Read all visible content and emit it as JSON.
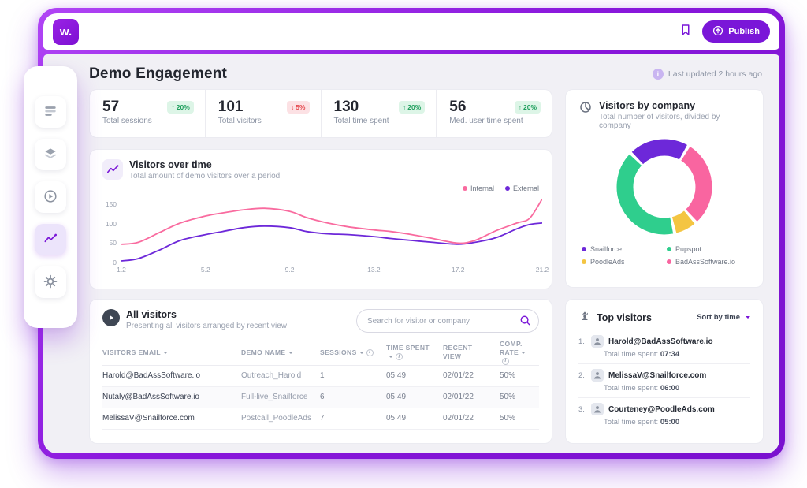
{
  "topbar": {
    "logo_text": "w.",
    "publish": {
      "label": "Publish"
    }
  },
  "page": {
    "title": "Demo Engagement",
    "last_updated": "Last updated 2 hours ago"
  },
  "stats": [
    {
      "value": "57",
      "label": "Total sessions",
      "arrow": "↑",
      "delta": "20%",
      "direction": "up"
    },
    {
      "value": "101",
      "label": "Total visitors",
      "arrow": "↓",
      "delta": "5%",
      "direction": "down"
    },
    {
      "value": "130",
      "label": "Total time spent",
      "arrow": "↑",
      "delta": "20%",
      "direction": "up"
    },
    {
      "value": "56",
      "label": "Med. user time spent",
      "arrow": "↑",
      "delta": "20%",
      "direction": "up"
    }
  ],
  "colors": {
    "primary": "#7A16D8",
    "internal_pink": "#F96B9F",
    "external_purple": "#6D28D9",
    "green": "#2FCE8D",
    "yellow": "#F4C542",
    "pink": "#F965A0",
    "positive": "#1E9E5C",
    "negative": "#E5484D"
  },
  "visitors_over_time": {
    "title": "Visitors over time",
    "subtitle": "Total amount of demo visitors over a period",
    "legend": [
      {
        "label": "Internal",
        "color": "#F96B9F"
      },
      {
        "label": "External",
        "color": "#6D28D9"
      }
    ]
  },
  "chart_data": [
    {
      "type": "line",
      "title": "Visitors over time",
      "x": [
        1.2,
        2,
        3,
        4,
        5.2,
        6,
        7,
        8,
        9.2,
        10,
        11,
        12,
        13.2,
        14,
        15,
        16,
        17.2,
        18,
        19,
        20,
        20.6,
        21.2
      ],
      "series": [
        {
          "name": "Internal",
          "color": "#F96B9F",
          "values": [
            45,
            50,
            75,
            100,
            118,
            126,
            134,
            138,
            130,
            114,
            100,
            90,
            82,
            78,
            70,
            60,
            48,
            55,
            80,
            100,
            112,
            162
          ]
        },
        {
          "name": "External",
          "color": "#6D28D9",
          "values": [
            2,
            8,
            30,
            55,
            70,
            78,
            88,
            92,
            88,
            78,
            72,
            70,
            65,
            60,
            55,
            50,
            45,
            50,
            62,
            85,
            96,
            100
          ]
        }
      ],
      "y_ticks": [
        0,
        50,
        100,
        150
      ],
      "x_ticks": [
        1.2,
        5.2,
        9.2,
        13.2,
        17.2,
        21.2
      ],
      "ylim": [
        0,
        175
      ],
      "grid": false,
      "legend_position": "top-right"
    },
    {
      "type": "pie",
      "title": "Visitors by company",
      "slices": [
        {
          "label": "Snailforce",
          "value": 21,
          "color": "#6D28D9"
        },
        {
          "label": "BadAssSoftware.io",
          "value": 30,
          "color": "#F965A0"
        },
        {
          "label": "PoodleAds",
          "value": 8,
          "color": "#F4C542"
        },
        {
          "label": "Pupspot",
          "value": 41,
          "color": "#2FCE8D"
        }
      ],
      "start_angle_deg_from_top": 315,
      "donut": true
    }
  ],
  "all_visitors": {
    "title": "All visitors",
    "subtitle": "Presenting all visitors arranged by recent view",
    "search_placeholder": "Search for visitor or company",
    "columns": [
      {
        "label": "Visitors email",
        "sortable": true,
        "info": false
      },
      {
        "label": "Demo name",
        "sortable": true,
        "info": false
      },
      {
        "label": "Sessions",
        "sortable": true,
        "info": true
      },
      {
        "label": "Time spent",
        "sortable": true,
        "info": true
      },
      {
        "label": "Recent view",
        "sortable": false,
        "info": false
      },
      {
        "label": "Comp. rate",
        "sortable": true,
        "info": true
      }
    ],
    "rows": [
      {
        "email": "Harold@BadAssSoftware.io",
        "demo": "Outreach_Harold",
        "sessions": "1",
        "time": "05:49",
        "recent": "02/01/22",
        "rate": "50%"
      },
      {
        "email": "Nutaly@BadAssSoftware.io",
        "demo": "Full-live_Snailforce",
        "sessions": "6",
        "time": "05:49",
        "recent": "02/01/22",
        "rate": "50%"
      },
      {
        "email": "MelissaV@Snailforce.com",
        "demo": "Postcall_PoodleAds",
        "sessions": "7",
        "time": "05:49",
        "recent": "02/01/22",
        "rate": "50%"
      }
    ]
  },
  "visitors_by_company": {
    "title": "Visitors by company",
    "subtitle": "Total number of visitors, divided by company",
    "legend": [
      {
        "label": "Snailforce",
        "color": "#6D28D9"
      },
      {
        "label": "Pupspot",
        "color": "#2FCE8D"
      },
      {
        "label": "PoodleAds",
        "color": "#F4C542"
      },
      {
        "label": "BadAssSoftware.io",
        "color": "#F965A0"
      }
    ]
  },
  "top_visitors": {
    "title": "Top visitors",
    "sort_label": "Sort by time",
    "items": [
      {
        "rank": "1.",
        "name": "Harold@BadAssSoftware.io",
        "time_label": "Total time spent:",
        "time_value": "07:34"
      },
      {
        "rank": "2.",
        "name": "MelissaV@Snailforce.com",
        "time_label": "Total time spent:",
        "time_value": "06:00"
      },
      {
        "rank": "3.",
        "name": "Courteney@PoodleAds.com",
        "time_label": "Total time spent:",
        "time_value": "05:00"
      }
    ]
  }
}
